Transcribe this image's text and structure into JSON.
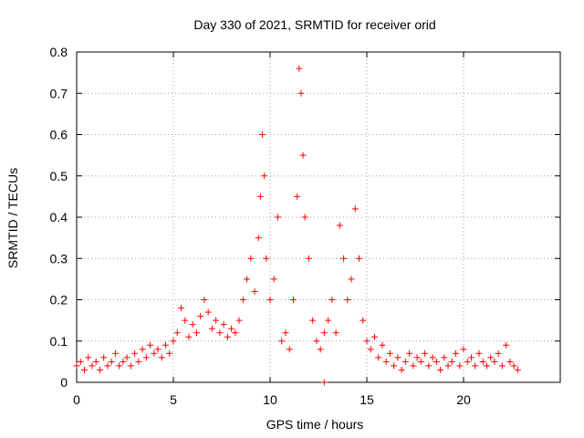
{
  "chart_data": {
    "type": "scatter",
    "title": "Day 330 of 2021, SRMTID for receiver orid",
    "xlabel": "GPS time / hours",
    "ylabel": "SRMTID / TECUs",
    "xlim": [
      0,
      25
    ],
    "ylim": [
      0,
      0.8
    ],
    "x_ticks": [
      0,
      5,
      10,
      15,
      20
    ],
    "x_tick_labels": [
      "0",
      "5",
      "10",
      "15",
      "20"
    ],
    "y_ticks": [
      0,
      0.1,
      0.2,
      0.3,
      0.4,
      0.5,
      0.6,
      0.7,
      0.8
    ],
    "y_tick_labels": [
      "0",
      "0.1",
      "0.2",
      "0.3",
      "0.4",
      "0.5",
      "0.6",
      "0.7",
      "0.8"
    ],
    "grid": true,
    "marker": "+",
    "color": "#ff0000",
    "series": [
      {
        "name": "SRMTID",
        "points": [
          [
            0.0,
            0.04
          ],
          [
            0.2,
            0.05
          ],
          [
            0.4,
            0.03
          ],
          [
            0.6,
            0.06
          ],
          [
            0.8,
            0.04
          ],
          [
            1.0,
            0.05
          ],
          [
            1.2,
            0.03
          ],
          [
            1.4,
            0.06
          ],
          [
            1.6,
            0.04
          ],
          [
            1.8,
            0.05
          ],
          [
            2.0,
            0.07
          ],
          [
            2.2,
            0.04
          ],
          [
            2.4,
            0.05
          ],
          [
            2.6,
            0.06
          ],
          [
            2.8,
            0.04
          ],
          [
            3.0,
            0.07
          ],
          [
            3.2,
            0.05
          ],
          [
            3.4,
            0.08
          ],
          [
            3.6,
            0.06
          ],
          [
            3.8,
            0.09
          ],
          [
            4.0,
            0.07
          ],
          [
            4.2,
            0.08
          ],
          [
            4.4,
            0.06
          ],
          [
            4.6,
            0.09
          ],
          [
            4.8,
            0.07
          ],
          [
            5.0,
            0.1
          ],
          [
            5.2,
            0.12
          ],
          [
            5.4,
            0.18
          ],
          [
            5.6,
            0.15
          ],
          [
            5.8,
            0.11
          ],
          [
            6.0,
            0.14
          ],
          [
            6.2,
            0.12
          ],
          [
            6.4,
            0.16
          ],
          [
            6.6,
            0.2
          ],
          [
            6.8,
            0.17
          ],
          [
            7.0,
            0.13
          ],
          [
            7.2,
            0.15
          ],
          [
            7.4,
            0.12
          ],
          [
            7.6,
            0.14
          ],
          [
            7.8,
            0.11
          ],
          [
            8.0,
            0.13
          ],
          [
            8.2,
            0.12
          ],
          [
            8.4,
            0.15
          ],
          [
            8.6,
            0.2
          ],
          [
            8.8,
            0.25
          ],
          [
            9.0,
            0.3
          ],
          [
            9.2,
            0.22
          ],
          [
            9.4,
            0.35
          ],
          [
            9.5,
            0.45
          ],
          [
            9.6,
            0.6
          ],
          [
            9.7,
            0.5
          ],
          [
            9.8,
            0.3
          ],
          [
            10.0,
            0.2
          ],
          [
            10.2,
            0.25
          ],
          [
            10.4,
            0.4
          ],
          [
            10.6,
            0.1
          ],
          [
            10.8,
            0.12
          ],
          [
            11.0,
            0.08
          ],
          [
            11.2,
            0.2
          ],
          [
            11.4,
            0.45
          ],
          [
            11.5,
            0.76
          ],
          [
            11.6,
            0.7
          ],
          [
            11.7,
            0.55
          ],
          [
            11.8,
            0.4
          ],
          [
            12.0,
            0.3
          ],
          [
            12.2,
            0.15
          ],
          [
            12.4,
            0.1
          ],
          [
            12.6,
            0.08
          ],
          [
            12.8,
            0.12
          ],
          [
            13.0,
            0.15
          ],
          [
            13.2,
            0.2
          ],
          [
            13.4,
            0.12
          ],
          [
            13.6,
            0.38
          ],
          [
            13.8,
            0.3
          ],
          [
            14.0,
            0.2
          ],
          [
            14.2,
            0.25
          ],
          [
            14.4,
            0.42
          ],
          [
            14.6,
            0.3
          ],
          [
            14.8,
            0.15
          ],
          [
            15.0,
            0.1
          ],
          [
            15.2,
            0.08
          ],
          [
            15.4,
            0.11
          ],
          [
            15.6,
            0.06
          ],
          [
            15.8,
            0.09
          ],
          [
            16.0,
            0.05
          ],
          [
            16.2,
            0.07
          ],
          [
            16.4,
            0.04
          ],
          [
            16.6,
            0.06
          ],
          [
            16.8,
            0.03
          ],
          [
            17.0,
            0.05
          ],
          [
            17.2,
            0.07
          ],
          [
            17.4,
            0.04
          ],
          [
            17.6,
            0.06
          ],
          [
            17.8,
            0.05
          ],
          [
            18.0,
            0.07
          ],
          [
            18.2,
            0.04
          ],
          [
            18.4,
            0.06
          ],
          [
            18.6,
            0.05
          ],
          [
            18.8,
            0.03
          ],
          [
            19.0,
            0.06
          ],
          [
            19.2,
            0.04
          ],
          [
            19.4,
            0.05
          ],
          [
            19.6,
            0.07
          ],
          [
            19.8,
            0.04
          ],
          [
            20.0,
            0.08
          ],
          [
            20.2,
            0.05
          ],
          [
            20.4,
            0.06
          ],
          [
            20.6,
            0.04
          ],
          [
            20.8,
            0.07
          ],
          [
            21.0,
            0.05
          ],
          [
            21.2,
            0.04
          ],
          [
            21.4,
            0.06
          ],
          [
            21.6,
            0.05
          ],
          [
            21.8,
            0.07
          ],
          [
            22.0,
            0.04
          ],
          [
            22.2,
            0.09
          ],
          [
            22.4,
            0.05
          ],
          [
            22.6,
            0.04
          ],
          [
            22.8,
            0.03
          ],
          [
            12.8,
            0.0
          ]
        ]
      }
    ]
  }
}
